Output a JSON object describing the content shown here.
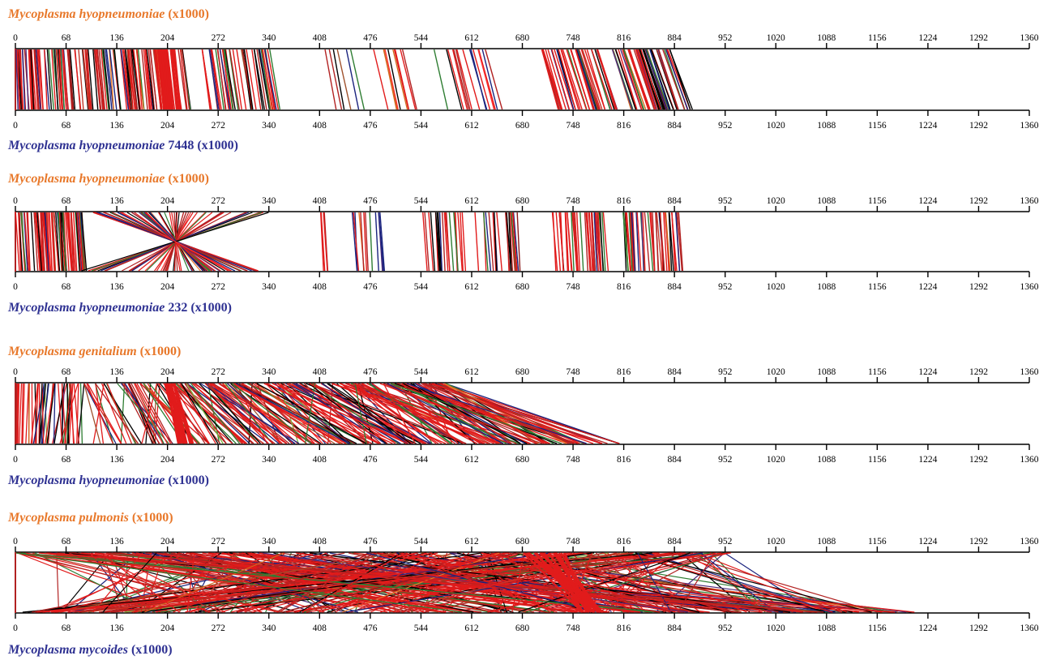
{
  "figure": {
    "colors": {
      "top_label": "#e8782a",
      "bottom_label": "#2e3192",
      "match_palette": [
        "#e11b1b",
        "#b22222",
        "#000000",
        "#1a237e",
        "#2e7d32",
        "#7cb342",
        "#c0392b",
        "#8b1a1a",
        "#d2691e",
        "#e8782a",
        "#4b2a7a",
        "#ff3030",
        "#a0522d"
      ]
    },
    "axis_ticks": [
      0,
      68,
      136,
      204,
      272,
      340,
      408,
      476,
      544,
      612,
      680,
      748,
      816,
      884,
      952,
      1020,
      1088,
      1156,
      1224,
      1292,
      1360
    ],
    "panels": [
      {
        "id": "panel-1",
        "top_genome": {
          "name": "Mycoplasma hyopneumoniae",
          "suffix": " (x1000)",
          "length_kb": 893
        },
        "bottom_genome": {
          "name": "Mycoplasma hyopneumoniae",
          "suffix": " 7448 (x1000)",
          "length_kb": 920
        },
        "alignment": "colinear-shifted"
      },
      {
        "id": "panel-2",
        "top_genome": {
          "name": "Mycoplasma hyopneumoniae",
          "suffix": " (x1000)",
          "length_kb": 893
        },
        "bottom_genome": {
          "name": "Mycoplasma hyopneumoniae",
          "suffix": " 232 (x1000)",
          "length_kb": 892
        },
        "alignment": "colinear-with-inversion"
      },
      {
        "id": "panel-3",
        "top_genome": {
          "name": "Mycoplasma genitalium",
          "suffix": " (x1000)",
          "length_kb": 580
        },
        "bottom_genome": {
          "name": "Mycoplasma hyopneumoniae",
          "suffix": " (x1000)",
          "length_kb": 893
        },
        "alignment": "divergent-fan"
      },
      {
        "id": "panel-4",
        "top_genome": {
          "name": "Mycoplasma pulmonis",
          "suffix": " (x1000)",
          "length_kb": 963
        },
        "bottom_genome": {
          "name": "Mycoplasma mycoides",
          "suffix": " (x1000)",
          "length_kb": 1211
        },
        "alignment": "scrambled"
      }
    ]
  }
}
